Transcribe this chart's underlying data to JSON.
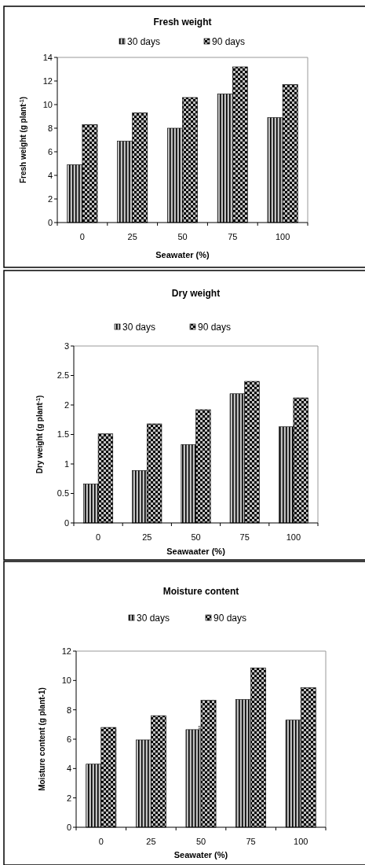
{
  "chart_data": [
    {
      "type": "bar",
      "title": "Fresh weight",
      "xlabel": "Seawater (%)",
      "ylabel": "Fresh weight (g plant$^{-1}$)",
      "categories": [
        "0",
        "25",
        "50",
        "75",
        "100"
      ],
      "series": [
        {
          "name": "30 days",
          "color": "#000000",
          "values": [
            4.9,
            6.9,
            8.0,
            10.9,
            8.9
          ]
        },
        {
          "name": "90 days",
          "color": "#000000",
          "values": [
            8.3,
            9.3,
            10.6,
            13.2,
            11.7
          ]
        }
      ],
      "ylim": [
        0,
        14
      ],
      "yticks": [
        0,
        2,
        4,
        6,
        8,
        10,
        12,
        14
      ],
      "legend": "top",
      "grid": false
    },
    {
      "type": "bar",
      "title": "Dry weight",
      "xlabel": "Seawaater (%)",
      "ylabel": "Dry weight (g plant$^{-1}$)",
      "categories": [
        "0",
        "25",
        "50",
        "75",
        "100"
      ],
      "series": [
        {
          "name": "30 days",
          "color": "#000000",
          "values": [
            0.66,
            0.89,
            1.33,
            2.19,
            1.63
          ]
        },
        {
          "name": "90 days",
          "color": "#000000",
          "values": [
            1.51,
            1.68,
            1.92,
            2.4,
            2.12
          ]
        }
      ],
      "ylim": [
        0,
        3
      ],
      "yticks": [
        0,
        0.5,
        1,
        1.5,
        2,
        2.5,
        3
      ],
      "legend": "top",
      "grid": false
    },
    {
      "type": "bar",
      "title": "Moisture content",
      "xlabel": "Seawater (%)",
      "ylabel": "Moisture content (g plant-1)",
      "categories": [
        "0",
        "25",
        "50",
        "75",
        "100"
      ],
      "series": [
        {
          "name": "30 days",
          "color": "#000000",
          "values": [
            4.3,
            5.95,
            6.65,
            8.7,
            7.3
          ]
        },
        {
          "name": "90 days",
          "color": "#000000",
          "values": [
            6.8,
            7.6,
            8.65,
            10.85,
            9.5
          ]
        }
      ],
      "ylim": [
        0,
        12
      ],
      "yticks": [
        0,
        2,
        4,
        6,
        8,
        10,
        12
      ],
      "legend": "top",
      "grid": false,
      "annotations": [
        {
          "text": "s",
          "x": "50",
          "y": 6.7
        }
      ]
    }
  ]
}
